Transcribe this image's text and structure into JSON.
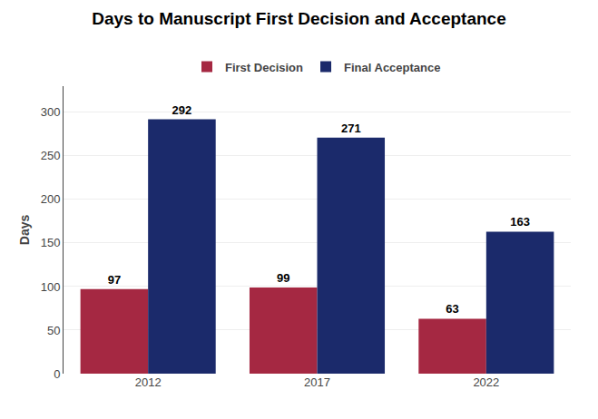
{
  "chart_data": {
    "type": "bar",
    "title": "Days to Manuscript First Decision and Acceptance",
    "ylabel": "Days",
    "categories": [
      "2012",
      "2017",
      "2022"
    ],
    "series": [
      {
        "name": "First Decision",
        "color": "#A52842",
        "values": [
          97,
          99,
          63
        ]
      },
      {
        "name": "Final Acceptance",
        "color": "#1B2A6B",
        "values": [
          292,
          271,
          163
        ]
      }
    ],
    "ylim": [
      0,
      330
    ],
    "yticks": [
      0,
      50,
      100,
      150,
      200,
      250,
      300
    ],
    "grid": true,
    "data_labels": true,
    "legend": "top"
  }
}
